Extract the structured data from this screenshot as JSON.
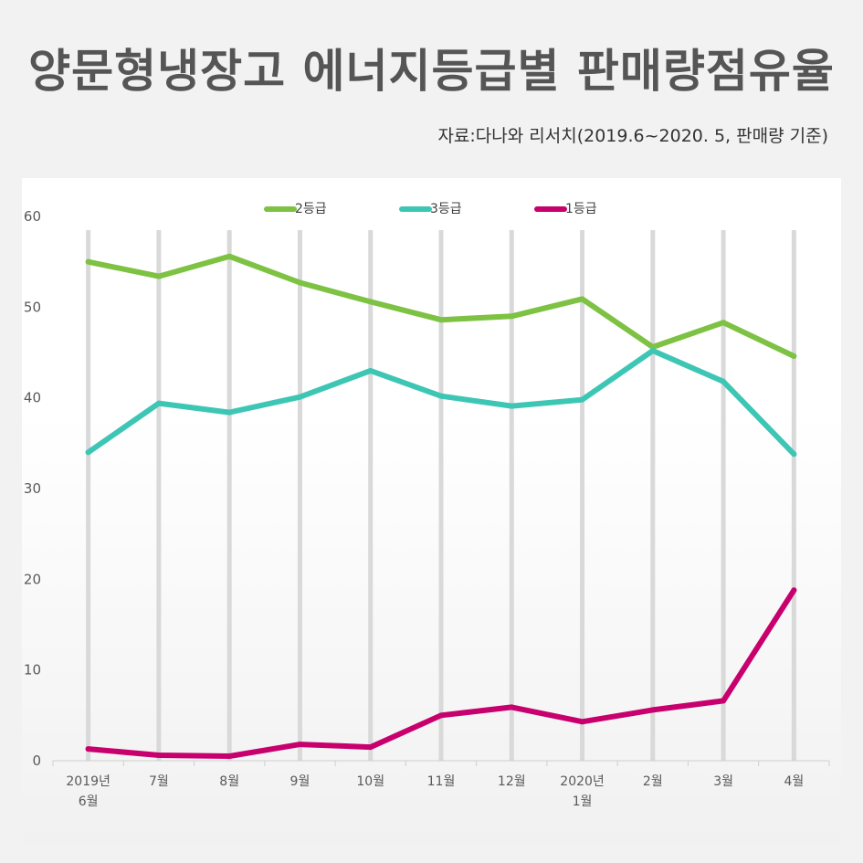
{
  "title": "양문형냉장고 에너지등급별 판매량점유율",
  "source": "자료:다나와 리서치(2019.6~2020. 5, 판매량 기준)",
  "chart_data": {
    "type": "line",
    "categories": [
      [
        "2019년",
        "6월"
      ],
      [
        "7월"
      ],
      [
        "8월"
      ],
      [
        "9월"
      ],
      [
        "10월"
      ],
      [
        "11월"
      ],
      [
        "12월"
      ],
      [
        "2020년",
        "1월"
      ],
      [
        "2월"
      ],
      [
        "3월"
      ],
      [
        "4월"
      ]
    ],
    "y_ticks": [
      "0",
      "10",
      "20",
      "30",
      "40",
      "50",
      "60"
    ],
    "ylim": [
      0,
      60
    ],
    "grid": "vertical",
    "legend_position": "top",
    "series": [
      {
        "name": "2등급",
        "color": "#7dc242",
        "values": [
          55.0,
          53.4,
          55.6,
          52.7,
          50.6,
          48.6,
          49.0,
          50.9,
          45.6,
          48.3,
          44.6
        ]
      },
      {
        "name": "3등급",
        "color": "#3ec6b5",
        "values": [
          34.0,
          39.4,
          38.4,
          40.1,
          43.0,
          40.2,
          39.1,
          39.8,
          45.2,
          41.8,
          33.8
        ]
      },
      {
        "name": "1등급",
        "color": "#c8006e",
        "values": [
          1.3,
          0.6,
          0.5,
          1.8,
          1.5,
          5.0,
          5.9,
          4.3,
          5.6,
          6.6,
          18.8
        ]
      }
    ]
  }
}
